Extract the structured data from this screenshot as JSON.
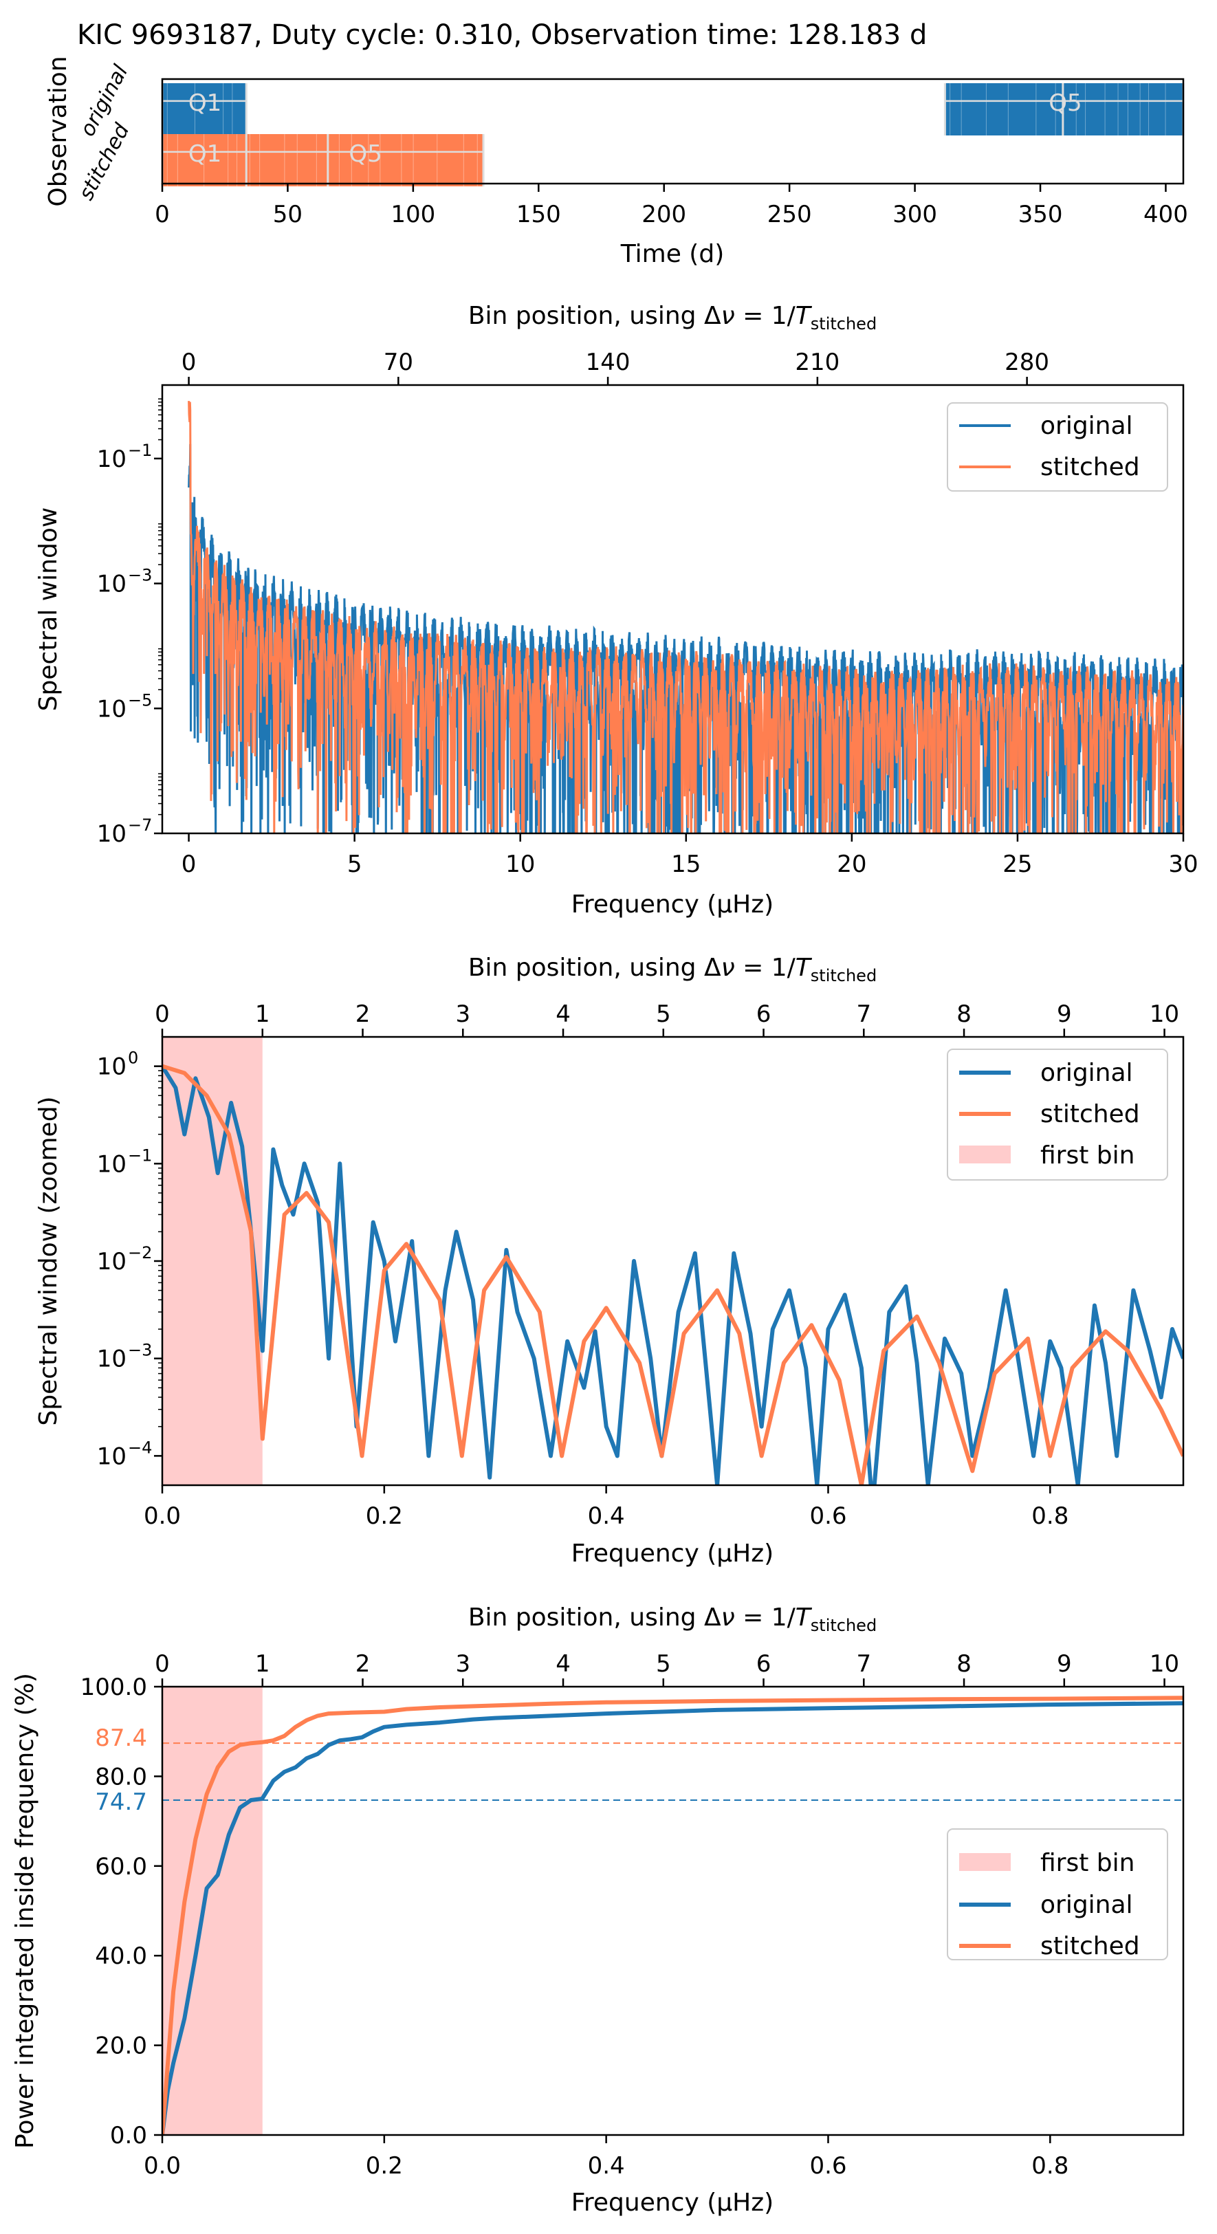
{
  "figure_title": "KIC 9693187, Duty cycle: 0.310, Observation time: 128.183 d",
  "colors": {
    "original": "#1f77b4",
    "stitched": "#ff7f50",
    "first_bin": "#ffcccc"
  },
  "chart_data": [
    {
      "type": "timeline",
      "title": "KIC 9693187, Duty cycle: 0.310, Observation time: 128.183 d",
      "xlabel": "Time (d)",
      "ylabel": "Observation",
      "xlim": [
        0,
        407
      ],
      "xticks": [
        "0",
        "50",
        "100",
        "150",
        "200",
        "250",
        "300",
        "350",
        "400"
      ],
      "rows": [
        {
          "name": "original",
          "label": "original",
          "segments": [
            [
              0,
              33.5
            ],
            [
              312,
              407
            ]
          ],
          "quarters": [
            {
              "label": "Q1",
              "t": 17
            },
            {
              "label": "Q5",
              "t": 360
            }
          ]
        },
        {
          "name": "stitched",
          "label": "stitched",
          "segments": [
            [
              0,
              128.183
            ]
          ],
          "quarters": [
            {
              "label": "Q1",
              "t": 17
            },
            {
              "label": "Q5",
              "t": 81
            }
          ]
        }
      ]
    },
    {
      "type": "line",
      "ylabel": "Spectral window",
      "xlabel": "Frequency (µHz)",
      "top_xlabel_prefix": "Bin position, using",
      "xlim": [
        -0.8,
        30
      ],
      "ylim": [
        1e-07,
        1.5
      ],
      "yscale": "log",
      "xticks": [
        "0",
        "5",
        "10",
        "15",
        "20",
        "25",
        "30"
      ],
      "yticks": [
        "10",
        "10",
        "10",
        "10"
      ],
      "yexps": [
        "−1",
        "−3",
        "−5",
        "−7"
      ],
      "top_ticks": [
        "0",
        "70",
        "140",
        "210",
        "280"
      ],
      "legend": [
        "original",
        "stitched"
      ],
      "series": [
        {
          "name": "original",
          "description": "dense oscillating spectral window, peak 1.0 at 0 µHz decaying to ~1e-5 envelope"
        },
        {
          "name": "stitched",
          "description": "dense oscillating spectral window, peak 1.0 at 0 µHz decaying to ~1e-5 envelope"
        }
      ]
    },
    {
      "type": "line",
      "ylabel": "Spectral window (zoomed)",
      "xlabel": "Frequency (µHz)",
      "top_xlabel_prefix": "Bin position, using",
      "xlim": [
        0,
        0.92
      ],
      "ylim": [
        5e-05,
        2
      ],
      "yscale": "log",
      "xticks": [
        "0.0",
        "0.2",
        "0.4",
        "0.6",
        "0.8"
      ],
      "yticks": [
        "10",
        "10",
        "10",
        "10",
        "10"
      ],
      "yexps": [
        "0",
        "−1",
        "−2",
        "−3",
        "−4"
      ],
      "top_ticks": [
        "0",
        "1",
        "2",
        "3",
        "4",
        "5",
        "6",
        "7",
        "8",
        "9",
        "10"
      ],
      "first_bin": [
        0,
        0.0903
      ],
      "legend": [
        "original",
        "stitched",
        "first bin"
      ],
      "series": [
        {
          "name": "stitched",
          "x": [
            0,
            0.02,
            0.04,
            0.06,
            0.08,
            0.0903,
            0.11,
            0.13,
            0.15,
            0.18,
            0.2,
            0.22,
            0.25,
            0.27,
            0.29,
            0.31,
            0.34,
            0.36,
            0.38,
            0.4,
            0.43,
            0.45,
            0.47,
            0.5,
            0.52,
            0.54,
            0.56,
            0.585,
            0.61,
            0.63,
            0.65,
            0.68,
            0.7,
            0.73,
            0.75,
            0.78,
            0.8,
            0.82,
            0.85,
            0.87,
            0.9,
            0.92
          ],
          "y": [
            1.0,
            0.85,
            0.5,
            0.2,
            0.02,
            0.00015,
            0.03,
            0.05,
            0.025,
            0.0001,
            0.008,
            0.015,
            0.004,
            0.0001,
            0.005,
            0.011,
            0.003,
            0.0001,
            0.0015,
            0.0033,
            0.0009,
            0.0001,
            0.0018,
            0.005,
            0.0018,
            0.0001,
            0.0009,
            0.0022,
            0.0006,
            5e-05,
            0.0012,
            0.0027,
            0.0009,
            7e-05,
            0.0007,
            0.0016,
            0.0001,
            0.0008,
            0.0019,
            0.0012,
            0.0003,
            0.0001
          ]
        },
        {
          "name": "original",
          "x": [
            0,
            0.012,
            0.02,
            0.03,
            0.042,
            0.05,
            0.062,
            0.072,
            0.08,
            0.0903,
            0.1,
            0.108,
            0.118,
            0.128,
            0.14,
            0.15,
            0.16,
            0.175,
            0.19,
            0.2,
            0.21,
            0.225,
            0.24,
            0.255,
            0.265,
            0.28,
            0.295,
            0.31,
            0.32,
            0.335,
            0.35,
            0.365,
            0.38,
            0.39,
            0.4,
            0.41,
            0.425,
            0.44,
            0.45,
            0.465,
            0.48,
            0.49,
            0.5,
            0.515,
            0.53,
            0.54,
            0.55,
            0.565,
            0.58,
            0.59,
            0.6,
            0.615,
            0.63,
            0.64,
            0.655,
            0.67,
            0.68,
            0.69,
            0.705,
            0.72,
            0.73,
            0.745,
            0.76,
            0.77,
            0.785,
            0.8,
            0.81,
            0.825,
            0.84,
            0.85,
            0.86,
            0.875,
            0.89,
            0.9,
            0.91,
            0.92
          ],
          "y": [
            1.0,
            0.6,
            0.2,
            0.75,
            0.3,
            0.08,
            0.42,
            0.15,
            0.02,
            0.0012,
            0.14,
            0.06,
            0.03,
            0.1,
            0.04,
            0.001,
            0.1,
            0.0002,
            0.025,
            0.01,
            0.0015,
            0.016,
            0.0001,
            0.005,
            0.02,
            0.004,
            6e-05,
            0.013,
            0.003,
            0.001,
            0.0001,
            0.0015,
            0.0005,
            0.0019,
            0.0002,
            0.0001,
            0.01,
            0.001,
            0.0001,
            0.003,
            0.012,
            0.0008,
            5e-05,
            0.012,
            0.0018,
            0.0002,
            0.002,
            0.005,
            0.0008,
            5e-05,
            0.002,
            0.0045,
            0.0008,
            3e-05,
            0.003,
            0.0055,
            0.0009,
            5e-05,
            0.0016,
            0.0007,
            0.0001,
            0.0005,
            0.005,
            0.0012,
            0.0001,
            0.0015,
            0.0008,
            5e-05,
            0.0035,
            0.0009,
            0.0001,
            0.005,
            0.0012,
            0.0004,
            0.002,
            0.001
          ]
        }
      ]
    },
    {
      "type": "line",
      "ylabel": "Power integrated inside frequency (%)",
      "xlabel": "Frequency (µHz)",
      "top_xlabel_prefix": "Bin position, using",
      "xlim": [
        0,
        0.92
      ],
      "ylim": [
        0,
        100
      ],
      "xticks": [
        "0.0",
        "0.2",
        "0.4",
        "0.6",
        "0.8"
      ],
      "yticks": [
        "0.0",
        "20.0",
        "40.0",
        "60.0",
        "80.0",
        "100.0"
      ],
      "top_ticks": [
        "0",
        "1",
        "2",
        "3",
        "4",
        "5",
        "6",
        "7",
        "8",
        "9",
        "10"
      ],
      "first_bin": [
        0,
        0.0903
      ],
      "hlines": [
        {
          "name": "stitched",
          "value": 87.4,
          "label": "87.4"
        },
        {
          "name": "original",
          "value": 74.7,
          "label": "74.7"
        }
      ],
      "legend": [
        "first bin",
        "original",
        "stitched"
      ],
      "series": [
        {
          "name": "original",
          "x": [
            0,
            0.005,
            0.01,
            0.02,
            0.03,
            0.04,
            0.05,
            0.06,
            0.07,
            0.08,
            0.09,
            0.1,
            0.11,
            0.12,
            0.13,
            0.14,
            0.15,
            0.16,
            0.17,
            0.18,
            0.19,
            0.2,
            0.22,
            0.25,
            0.28,
            0.3,
            0.35,
            0.4,
            0.5,
            0.6,
            0.7,
            0.8,
            0.92
          ],
          "y": [
            0,
            10,
            16,
            26,
            40,
            55,
            58,
            67,
            73,
            74.7,
            75,
            79,
            81,
            82,
            84,
            85,
            87,
            88,
            88.3,
            88.7,
            90,
            91,
            91.5,
            92,
            92.7,
            93,
            93.5,
            94,
            94.8,
            95.2,
            95.6,
            96,
            96.3
          ]
        },
        {
          "name": "stitched",
          "x": [
            0,
            0.01,
            0.02,
            0.03,
            0.04,
            0.05,
            0.06,
            0.07,
            0.08,
            0.09,
            0.1,
            0.11,
            0.12,
            0.13,
            0.14,
            0.15,
            0.17,
            0.2,
            0.22,
            0.25,
            0.3,
            0.35,
            0.4,
            0.5,
            0.6,
            0.7,
            0.8,
            0.92
          ],
          "y": [
            0,
            32,
            52,
            66,
            76,
            82,
            85.5,
            87,
            87.4,
            87.6,
            88,
            89,
            91,
            92.5,
            93.5,
            94,
            94.2,
            94.4,
            95,
            95.4,
            95.8,
            96.2,
            96.5,
            96.8,
            97,
            97.2,
            97.3,
            97.5
          ]
        }
      ]
    }
  ]
}
